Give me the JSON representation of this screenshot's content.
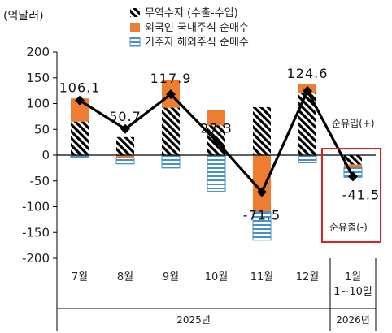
{
  "chart_data": {
    "type": "bar",
    "unit_label": "(억달러)",
    "ylim": [
      -200,
      200
    ],
    "yticks": [
      200,
      150,
      100,
      50,
      0,
      -50,
      -100,
      -150,
      -200
    ],
    "categories": [
      "7월",
      "8월",
      "9월",
      "10월",
      "11월",
      "12월",
      "1월\n1~10일"
    ],
    "year_groups": [
      {
        "label": "2025년",
        "from": 0,
        "to": 5
      },
      {
        "label": "2026년",
        "from": 6,
        "to": 6
      }
    ],
    "series": [
      {
        "name": "무역수지 (수출-수입)",
        "kind": "bar",
        "pattern": "hatch",
        "values": [
          65,
          35,
          92,
          58,
          93,
          120,
          -18
        ]
      },
      {
        "name": "외국인 국내주식 순매수",
        "kind": "bar",
        "pattern": "solid",
        "color": "#ED7D31",
        "values": [
          45,
          -5,
          54,
          30,
          -110,
          18,
          -5
        ]
      },
      {
        "name": "거주자 해외주식 순매수",
        "kind": "bar",
        "pattern": "stripes",
        "color": "#4A90C8",
        "values": [
          -4,
          -12,
          -25,
          -70,
          -55,
          -15,
          -20
        ]
      },
      {
        "name": "",
        "kind": "line",
        "color": "#000000",
        "values": [
          106.1,
          50.7,
          117.9,
          27.3,
          -71.5,
          124.6,
          -41.5
        ]
      }
    ],
    "data_labels": [
      "106.1",
      "50.7",
      "117.9",
      "27.3",
      "-71.5",
      "124.6",
      "-41.5"
    ],
    "annotations": {
      "inflow": "순유입(+)",
      "outflow": "순유출(-)"
    },
    "highlight_category": 6
  }
}
